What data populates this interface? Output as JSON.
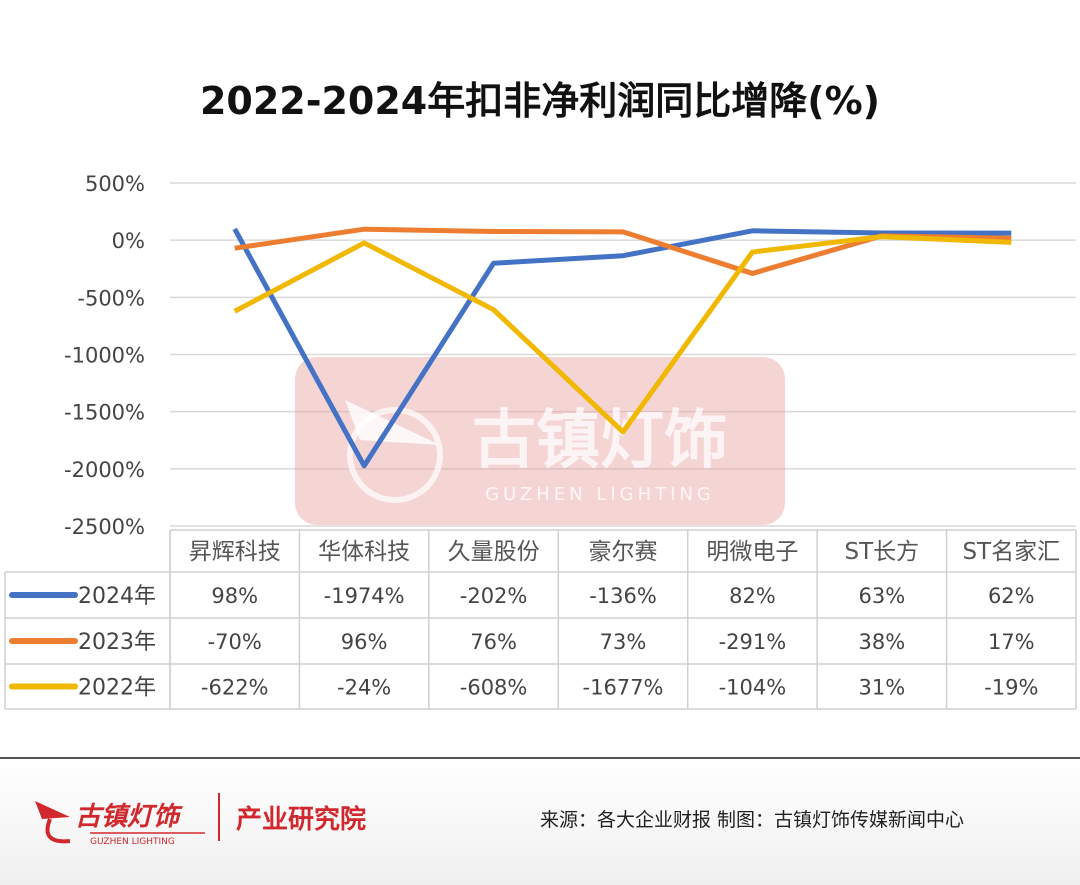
{
  "chart_data": {
    "type": "line",
    "title": "2022-2024年扣非净利润同比增降(%)",
    "categories": [
      "昇辉科技",
      "华体科技",
      "久量股份",
      "豪尔赛",
      "明微电子",
      "ST长方",
      "ST名家汇"
    ],
    "series": [
      {
        "name": "2024年",
        "color": "#4472c4",
        "values": [
          98,
          -1974,
          -202,
          -136,
          82,
          63,
          62
        ]
      },
      {
        "name": "2023年",
        "color": "#ed7d31",
        "values": [
          -70,
          96,
          76,
          73,
          -291,
          38,
          17
        ]
      },
      {
        "name": "2022年",
        "color": "#f0b800",
        "values": [
          -622,
          -24,
          -608,
          -1677,
          -104,
          31,
          -19
        ]
      }
    ],
    "ylim": [
      -2500,
      500
    ],
    "yticks": [
      500,
      0,
      -500,
      -1000,
      -1500,
      -2000,
      -2500
    ],
    "ytick_labels": [
      "500%",
      "0%",
      "-500%",
      "-1000%",
      "-1500%",
      "-2000%",
      "-2500%"
    ],
    "grid": true,
    "legend": "data-table",
    "table_cells": [
      [
        "98%",
        "-1974%",
        "-202%",
        "-136%",
        "82%",
        "63%",
        "62%"
      ],
      [
        "-70%",
        "96%",
        "76%",
        "73%",
        "-291%",
        "38%",
        "17%"
      ],
      [
        "-622%",
        "-24%",
        "-608%",
        "-1677%",
        "-104%",
        "31%",
        "-19%"
      ]
    ]
  },
  "watermark": {
    "cn": "古镇灯饰",
    "en": "GUZHEN LIGHTING"
  },
  "footer": {
    "logo_cn": "古镇灯饰",
    "logo_en": "GUZHEN LIGHTING",
    "institute": "产业研究院",
    "source": "来源：各大企业财报   制图：古镇灯饰传媒新闻中心"
  }
}
